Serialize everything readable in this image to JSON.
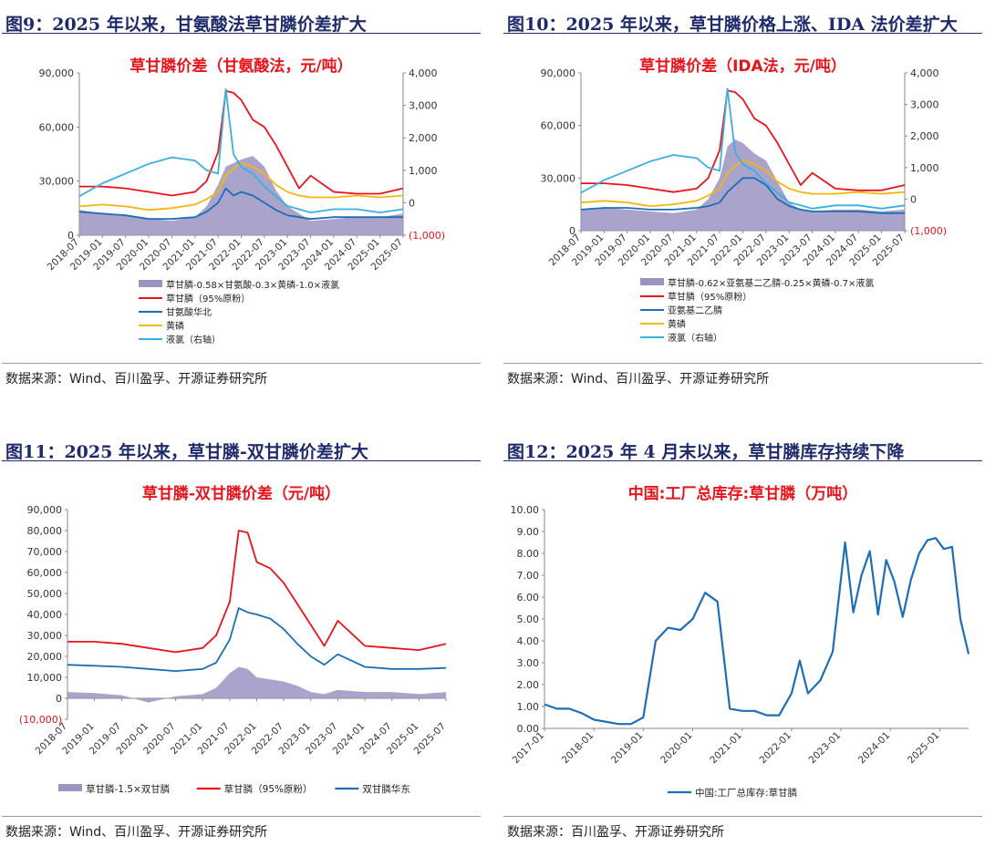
{
  "chart_data": [
    {
      "figure_title": "图9：2025 年以来，甘氨酸法草甘膦价差扩大",
      "type": "line",
      "title": "草甘膦价差（甘氨酸法，元/吨）",
      "x_ticks": [
        "2018-07",
        "2019-01",
        "2019-07",
        "2020-01",
        "2020-07",
        "2021-01",
        "2021-07",
        "2022-01",
        "2022-07",
        "2023-01",
        "2023-07",
        "2024-01",
        "2024-07",
        "2025-01",
        "2025-07"
      ],
      "ylim": [
        0,
        90000
      ],
      "y_ticks": [
        "0",
        "30,000",
        "60,000",
        "90,000"
      ],
      "ylim_right": [
        -1000,
        4000
      ],
      "y_ticks_right": [
        "(1,000)",
        "0",
        "1,000",
        "2,000",
        "3,000",
        "4,000"
      ],
      "x_dates": [
        "2018-07",
        "2019-01",
        "2019-07",
        "2020-01",
        "2020-07",
        "2021-01",
        "2021-04",
        "2021-07",
        "2021-09",
        "2021-11",
        "2022-01",
        "2022-04",
        "2022-07",
        "2022-10",
        "2023-01",
        "2023-04",
        "2023-07",
        "2024-01",
        "2024-07",
        "2025-01",
        "2025-07"
      ],
      "series": [
        {
          "name": "草甘膦-0.58×甘氨酸-0.3×黄磷-1.0×液氯",
          "kind": "area",
          "color": "#9b93c2",
          "values": [
            14000,
            12000,
            11000,
            9000,
            8000,
            10000,
            16000,
            28000,
            38000,
            40000,
            42000,
            44000,
            38000,
            25000,
            16000,
            12000,
            8000,
            9000,
            10000,
            10000,
            12000
          ]
        },
        {
          "name": "草甘膦（95%原粉）",
          "color": "#e8131b",
          "values": [
            27000,
            27000,
            26000,
            24000,
            22000,
            24000,
            30000,
            46000,
            80000,
            79000,
            75000,
            64000,
            60000,
            50000,
            38000,
            26000,
            33000,
            24000,
            23000,
            23000,
            26000
          ]
        },
        {
          "name": "甘氨酸华北",
          "color": "#1d6eb5",
          "values": [
            13000,
            12000,
            11000,
            9000,
            9000,
            10000,
            13000,
            18000,
            26000,
            22000,
            24000,
            22000,
            18000,
            14000,
            11000,
            10000,
            9000,
            10000,
            10000,
            10000,
            10000
          ]
        },
        {
          "name": "黄磷",
          "color": "#f5b70f",
          "values": [
            16000,
            17000,
            16000,
            14000,
            15000,
            17000,
            20000,
            24000,
            33000,
            37000,
            40000,
            38000,
            34000,
            28000,
            24000,
            22000,
            21000,
            21000,
            22000,
            21000,
            22000
          ]
        },
        {
          "name": "液氯（右轴）",
          "color": "#3ab0e0",
          "axis": "right",
          "values": [
            200,
            600,
            900,
            1200,
            1400,
            1300,
            1000,
            900,
            3500,
            1500,
            1100,
            900,
            500,
            200,
            -100,
            -200,
            -300,
            -200,
            -200,
            -300,
            -200
          ]
        }
      ],
      "legend": [
        "草甘膦-0.58×甘氨酸-0.3×黄磷-1.0×液氯",
        "草甘膦（95%原粉）",
        "甘氨酸华北",
        "黄磷",
        "液氯（右轴）"
      ],
      "legend_position": "bottom",
      "source": "数据来源：Wind、百川盈孚、开源证券研究所"
    },
    {
      "figure_title": "图10：2025 年以来，草甘膦价格上涨、IDA 法价差扩大",
      "type": "line",
      "title": "草甘膦价差（IDA法，元/吨）",
      "x_ticks": [
        "2018-07",
        "2019-01",
        "2019-07",
        "2020-01",
        "2020-07",
        "2021-01",
        "2021-07",
        "2022-01",
        "2022-07",
        "2023-01",
        "2023-07",
        "2024-01",
        "2024-07",
        "2025-01",
        "2025-07"
      ],
      "ylim": [
        0,
        90000
      ],
      "y_ticks": [
        "0",
        "30,000",
        "60,000",
        "90,000"
      ],
      "ylim_right": [
        -1000,
        4000
      ],
      "y_ticks_right": [
        "(1,000)",
        "0",
        "1,000",
        "2,000",
        "3,000",
        "4,000"
      ],
      "x_dates": [
        "2018-07",
        "2019-01",
        "2019-07",
        "2020-01",
        "2020-07",
        "2021-01",
        "2021-04",
        "2021-07",
        "2021-09",
        "2021-11",
        "2022-01",
        "2022-04",
        "2022-07",
        "2022-10",
        "2023-01",
        "2023-04",
        "2023-07",
        "2024-01",
        "2024-07",
        "2025-01",
        "2025-07"
      ],
      "series": [
        {
          "name": "草甘膦-0.62×亚氨基二乙腈-0.25×黄磷-0.7×液氯",
          "kind": "area",
          "color": "#9b93c2",
          "values": [
            12000,
            13000,
            12000,
            11000,
            10000,
            12000,
            18000,
            30000,
            48000,
            52000,
            50000,
            44000,
            40000,
            28000,
            16000,
            12000,
            11000,
            12000,
            12000,
            11000,
            12000
          ]
        },
        {
          "name": "草甘膦（95%原粉）",
          "color": "#e8131b",
          "values": [
            27000,
            27000,
            26000,
            24000,
            22000,
            24000,
            30000,
            46000,
            80000,
            79000,
            75000,
            64000,
            60000,
            50000,
            38000,
            26000,
            33000,
            24000,
            23000,
            23000,
            26000
          ]
        },
        {
          "name": "亚氨基二乙腈",
          "color": "#1d6eb5",
          "values": [
            12000,
            13000,
            13000,
            12000,
            12000,
            13000,
            14000,
            16000,
            22000,
            26000,
            30000,
            30000,
            26000,
            18000,
            14000,
            12000,
            11000,
            11000,
            11000,
            10000,
            10000
          ]
        },
        {
          "name": "黄磷",
          "color": "#f5b70f",
          "values": [
            16000,
            17000,
            16000,
            14000,
            15000,
            17000,
            20000,
            24000,
            33000,
            37000,
            40000,
            38000,
            34000,
            28000,
            24000,
            22000,
            21000,
            21000,
            22000,
            21000,
            22000
          ]
        },
        {
          "name": "液氯（右轴）",
          "color": "#3ab0e0",
          "axis": "right",
          "values": [
            200,
            600,
            900,
            1200,
            1400,
            1300,
            1000,
            900,
            3500,
            1500,
            1100,
            900,
            500,
            200,
            -100,
            -200,
            -300,
            -200,
            -200,
            -300,
            -200
          ]
        }
      ],
      "legend": [
        "草甘膦-0.62×亚氨基二乙腈-0.25×黄磷-0.7×液氯",
        "草甘膦（95%原粉）",
        "亚氨基二乙腈",
        "黄磷",
        "液氯（右轴）"
      ],
      "legend_position": "bottom",
      "source": "数据来源：Wind、百川盈孚、开源证券研究所"
    },
    {
      "figure_title": "图11：2025 年以来，草甘膦-双甘膦价差扩大",
      "type": "line",
      "title": "草甘膦-双甘膦价差（元/吨）",
      "x_ticks": [
        "2018-07",
        "2019-01",
        "2019-07",
        "2020-01",
        "2020-07",
        "2021-01",
        "2021-07",
        "2022-01",
        "2022-07",
        "2023-01",
        "2023-07",
        "2024-01",
        "2024-07",
        "2025-01",
        "2025-07"
      ],
      "ylim": [
        -10000,
        90000
      ],
      "y_ticks": [
        "(10,000)",
        "0",
        "10,000",
        "20,000",
        "30,000",
        "40,000",
        "50,000",
        "60,000",
        "70,000",
        "80,000",
        "90,000"
      ],
      "x_dates": [
        "2018-07",
        "2019-01",
        "2019-07",
        "2020-01",
        "2020-07",
        "2021-01",
        "2021-04",
        "2021-07",
        "2021-09",
        "2021-11",
        "2022-01",
        "2022-04",
        "2022-07",
        "2022-10",
        "2023-01",
        "2023-04",
        "2023-07",
        "2024-01",
        "2024-07",
        "2025-01",
        "2025-07"
      ],
      "series": [
        {
          "name": "草甘膦-1.5×双甘膦",
          "kind": "area",
          "color": "#9b93c2",
          "values": [
            3000,
            2500,
            1500,
            -2000,
            1000,
            2000,
            5000,
            12000,
            15000,
            14000,
            10000,
            9000,
            8000,
            6000,
            3000,
            2000,
            4000,
            3000,
            3000,
            2000,
            3000
          ]
        },
        {
          "name": "草甘膦（95%原粉）",
          "color": "#e8131b",
          "values": [
            27000,
            27000,
            26000,
            24000,
            22000,
            24000,
            30000,
            46000,
            80000,
            79000,
            65000,
            62000,
            55000,
            45000,
            35000,
            25000,
            37000,
            25000,
            24000,
            23000,
            26000
          ]
        },
        {
          "name": "双甘膦华东",
          "color": "#1d6eb5",
          "values": [
            16000,
            15500,
            15000,
            14000,
            13000,
            14000,
            17000,
            28000,
            43000,
            41000,
            40000,
            38000,
            33000,
            26000,
            20000,
            16000,
            21000,
            15000,
            14000,
            14000,
            14500
          ]
        }
      ],
      "legend": [
        "草甘膦-1.5×双甘膦",
        "草甘膦（95%原粉）",
        "双甘膦华东"
      ],
      "legend_position": "bottom",
      "source": "数据来源：Wind、百川盈孚、开源证券研究所"
    },
    {
      "figure_title": "图12：2025 年 4 月末以来，草甘膦库存持续下降",
      "type": "line",
      "title": "中国:工厂总库存:草甘膦（万吨）",
      "x_ticks": [
        "2017-01",
        "2018-01",
        "2019-01",
        "2020-01",
        "2021-01",
        "2022-01",
        "2023-01",
        "2024-01",
        "2025-01"
      ],
      "ylim": [
        0,
        10
      ],
      "y_ticks": [
        "0.00",
        "1.00",
        "2.00",
        "3.00",
        "4.00",
        "5.00",
        "6.00",
        "7.00",
        "8.00",
        "9.00",
        "10.00"
      ],
      "x_dates": [
        "2017-01",
        "2017-04",
        "2017-07",
        "2017-10",
        "2018-01",
        "2018-04",
        "2018-07",
        "2018-10",
        "2019-01",
        "2019-04",
        "2019-07",
        "2019-10",
        "2020-01",
        "2020-04",
        "2020-07",
        "2020-10",
        "2021-01",
        "2021-04",
        "2021-07",
        "2021-10",
        "2022-01",
        "2022-03",
        "2022-05",
        "2022-08",
        "2022-11",
        "2023-02",
        "2023-04",
        "2023-06",
        "2023-08",
        "2023-10",
        "2023-12",
        "2024-02",
        "2024-04",
        "2024-06",
        "2024-08",
        "2024-10",
        "2024-12",
        "2025-02",
        "2025-04",
        "2025-06",
        "2025-08"
      ],
      "series": [
        {
          "name": "中国:工厂总库存:草甘膦",
          "color": "#1d6eb5",
          "values": [
            1.1,
            0.9,
            0.9,
            0.7,
            0.4,
            0.3,
            0.2,
            0.2,
            0.5,
            4.0,
            4.6,
            4.5,
            5.0,
            6.2,
            5.8,
            0.9,
            0.8,
            0.8,
            0.6,
            0.6,
            1.6,
            3.1,
            1.6,
            2.2,
            3.5,
            8.5,
            5.3,
            7.0,
            8.1,
            5.2,
            7.7,
            6.7,
            5.1,
            6.8,
            8.0,
            8.6,
            8.7,
            8.2,
            8.3,
            5.0,
            3.4
          ]
        }
      ],
      "legend": [
        "中国:工厂总库存:草甘膦"
      ],
      "legend_position": "bottom",
      "source": "数据来源：百川盈孚、开源证券研究所"
    }
  ]
}
